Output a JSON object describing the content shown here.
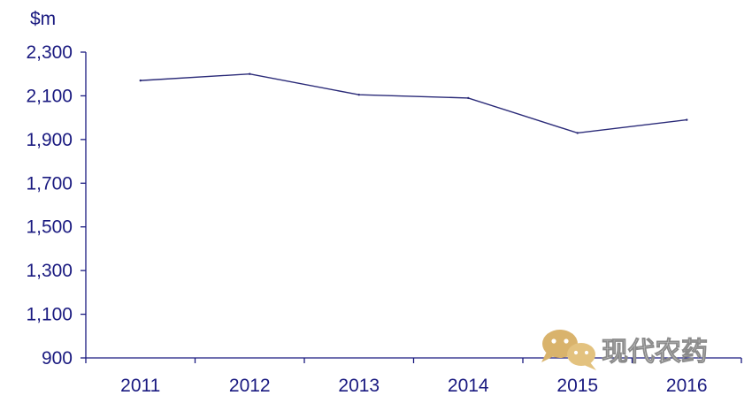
{
  "chart_data": {
    "type": "line",
    "unit_label": "$m",
    "categories": [
      "2011",
      "2012",
      "2013",
      "2014",
      "2015",
      "2016"
    ],
    "series": [
      {
        "values": [
          2170,
          2200,
          2105,
          2090,
          1930,
          1990
        ]
      }
    ],
    "yticks": [
      900,
      1100,
      1300,
      1500,
      1700,
      1900,
      2100,
      2300
    ],
    "ytick_labels": [
      "900",
      "1,100",
      "1,300",
      "1,500",
      "1,700",
      "1,900",
      "2,100",
      "2,300"
    ],
    "ylim": [
      900,
      2300
    ],
    "grid": false,
    "legend": "none",
    "colors": {
      "axis": "#1a1a80",
      "line": "#2a2a78"
    }
  },
  "watermark": {
    "text": "现代农药",
    "icon": "wechat-icon"
  }
}
